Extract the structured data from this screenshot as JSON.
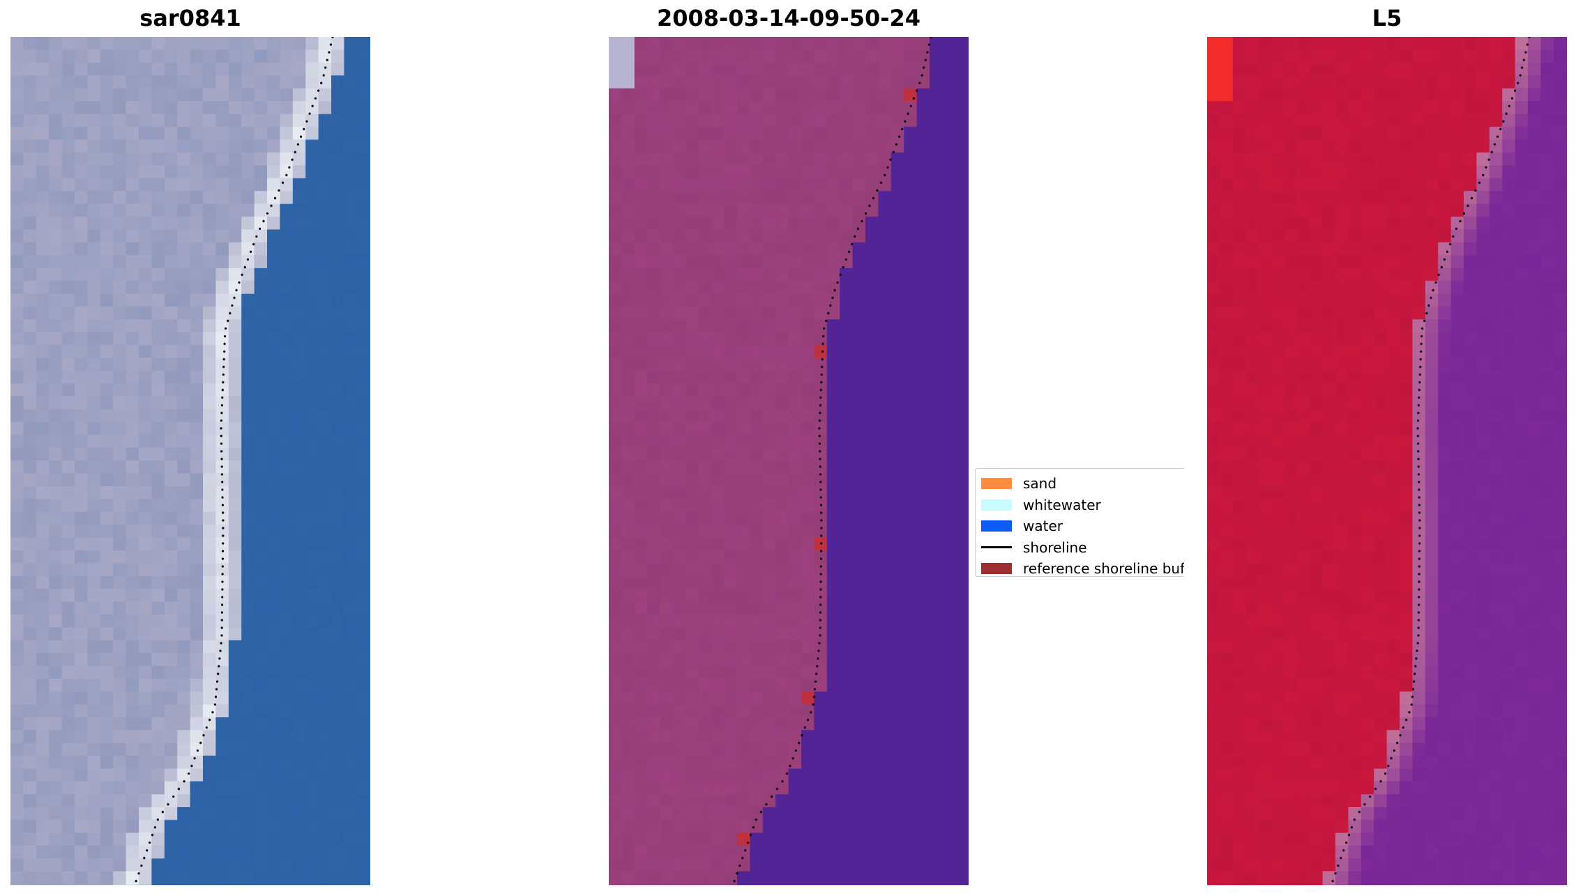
{
  "panels": [
    {
      "title": "sar0841"
    },
    {
      "title": "2008-03-14-09-50-24"
    },
    {
      "title": "L5"
    }
  ],
  "legend": {
    "items": [
      {
        "label": "sand",
        "kind": "patch",
        "color": "#ff8c3f"
      },
      {
        "label": "whitewater",
        "kind": "patch",
        "color": "#c8fcff"
      },
      {
        "label": "water",
        "kind": "patch",
        "color": "#0a5cf5"
      },
      {
        "label": "shoreline",
        "kind": "line",
        "color": "#000000"
      },
      {
        "label": "reference shoreline buffer",
        "kind": "patch",
        "color": "#9b2e30"
      }
    ]
  },
  "colors": {
    "rgb_land": "#a7a8c6",
    "rgb_surf": "#e9eef3",
    "rgb_water": "#2f64a6",
    "class_land": "#953e78",
    "class_water": "#522496",
    "class_buffer": "#c0303f",
    "class_corner": "#b7b5d2",
    "index_land": "#c2163f",
    "index_water": "#7d2a98",
    "index_corner": "#f12c2a",
    "index_mixed": "#c0709a"
  }
}
